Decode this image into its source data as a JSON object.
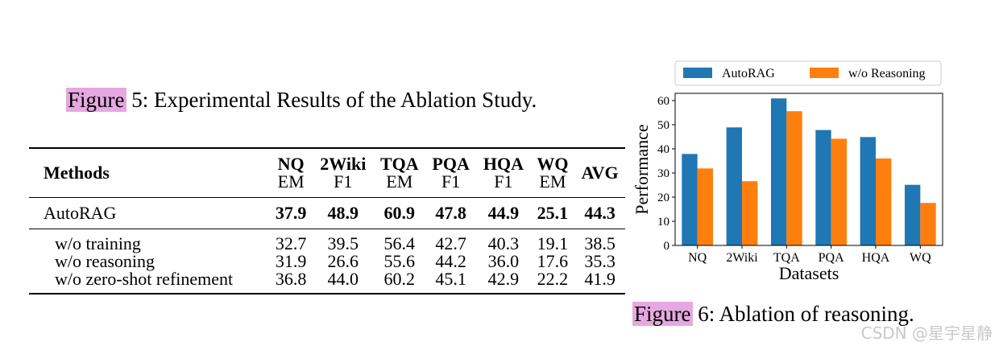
{
  "figure5": {
    "label": "Figure",
    "rest": " 5: Experimental Results of the Ablation Study."
  },
  "table": {
    "methods_header": "Methods",
    "columns": [
      {
        "name": "NQ",
        "metric": "EM"
      },
      {
        "name": "2Wiki",
        "metric": "F1"
      },
      {
        "name": "TQA",
        "metric": "EM"
      },
      {
        "name": "PQA",
        "metric": "F1"
      },
      {
        "name": "HQA",
        "metric": "F1"
      },
      {
        "name": "WQ",
        "metric": "EM"
      },
      {
        "name": "AVG",
        "metric": ""
      }
    ],
    "main_row": {
      "method": "AutoRAG",
      "values": [
        "37.9",
        "48.9",
        "60.9",
        "47.8",
        "44.9",
        "25.1",
        "44.3"
      ]
    },
    "ablation_rows": [
      {
        "method": "w/o training",
        "values": [
          "32.7",
          "39.5",
          "56.4",
          "42.7",
          "40.3",
          "19.1",
          "38.5"
        ]
      },
      {
        "method": "w/o reasoning",
        "values": [
          "31.9",
          "26.6",
          "55.6",
          "44.2",
          "36.0",
          "17.6",
          "35.3"
        ]
      },
      {
        "method": "w/o zero-shot refinement",
        "values": [
          "36.8",
          "44.0",
          "60.2",
          "45.1",
          "42.9",
          "22.2",
          "41.9"
        ]
      }
    ]
  },
  "figure6": {
    "label": "Figure",
    "rest": " 6: Ablation of reasoning."
  },
  "chart_data": {
    "type": "bar",
    "categories": [
      "NQ",
      "2Wiki",
      "TQA",
      "PQA",
      "HQA",
      "WQ"
    ],
    "series": [
      {
        "name": "AutoRAG",
        "values": [
          37.9,
          48.9,
          60.9,
          47.8,
          44.9,
          25.1
        ],
        "color": "#1f77b4"
      },
      {
        "name": "w/o Reasoning",
        "values": [
          31.9,
          26.6,
          55.6,
          44.2,
          36.0,
          17.6
        ],
        "color": "#ff7f0e"
      }
    ],
    "xlabel": "Datasets",
    "ylabel": "Performance",
    "ylim": [
      0,
      63
    ],
    "yticks": [
      0,
      10,
      20,
      30,
      40,
      50,
      60
    ],
    "legend": "top-outside",
    "grid": false
  },
  "watermark": "CSDN @星宇星静"
}
